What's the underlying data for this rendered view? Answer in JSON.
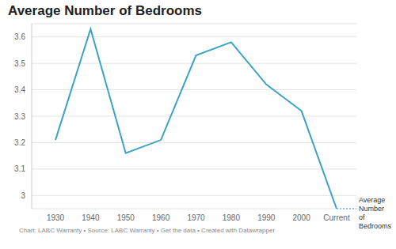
{
  "chart_data": {
    "type": "line",
    "title": "Average Number of Bedrooms",
    "footer": "Chart: LABC Warranty • Source: LABC Warranty • Get the data • Created with Datawrapper",
    "categories": [
      "1930",
      "1940",
      "1950",
      "1960",
      "1970",
      "1980",
      "1990",
      "2000",
      "Current"
    ],
    "series": [
      {
        "name": "Average Number of Bedrooms",
        "color": "#3ba3c5",
        "values": [
          3.21,
          3.63,
          3.16,
          3.21,
          3.53,
          3.58,
          3.42,
          3.32,
          2.95
        ]
      }
    ],
    "ylim": [
      2.95,
      3.65
    ],
    "yticks": [
      3,
      3.1,
      3.2,
      3.3,
      3.4,
      3.5,
      3.6
    ],
    "grid": true
  }
}
